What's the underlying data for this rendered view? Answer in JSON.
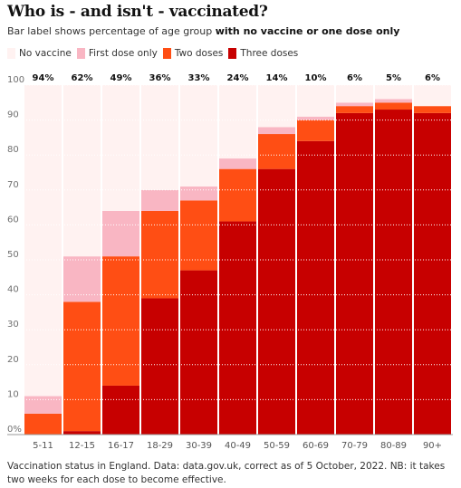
{
  "title": "Who is - and isn't - vaccinated?",
  "subtitle_prefix": "Bar label shows percentage of age group ",
  "subtitle_bold": "with no vaccine or one dose only",
  "footnote": "Vaccination status in England. Data: data.gov.uk, correct as of 5 October, 2022. NB: it takes two weeks for each dose to become effective.",
  "chart_data": {
    "type": "bar",
    "stacked": true,
    "categories": [
      "5-11",
      "12-15",
      "16-17",
      "18-29",
      "30-39",
      "40-49",
      "50-59",
      "60-69",
      "70-79",
      "80-89",
      "90+"
    ],
    "bar_labels": [
      "94%",
      "62%",
      "49%",
      "36%",
      "33%",
      "24%",
      "14%",
      "10%",
      "6%",
      "5%",
      "6%"
    ],
    "series": [
      {
        "name": "Three doses",
        "color": "#c70000",
        "values": [
          0,
          1,
          14,
          39,
          47,
          61,
          76,
          84,
          92,
          93,
          92
        ]
      },
      {
        "name": "Two doses",
        "color": "#ff4e14",
        "values": [
          6,
          37,
          37,
          25,
          20,
          15,
          10,
          6,
          2,
          2,
          2
        ]
      },
      {
        "name": "First dose only",
        "color": "#f9b6c3",
        "values": [
          5,
          13,
          13,
          6,
          4,
          3,
          2,
          1,
          1,
          1,
          0
        ]
      },
      {
        "name": "No vaccine",
        "color": "#fff2f1",
        "values": [
          89,
          49,
          36,
          30,
          29,
          21,
          12,
          9,
          5,
          4,
          6
        ]
      }
    ],
    "legend_order": [
      "No vaccine",
      "First dose only",
      "Two doses",
      "Three doses"
    ],
    "y_ticks": [
      "0%",
      "10",
      "20",
      "30",
      "40",
      "50",
      "60",
      "70",
      "80",
      "90",
      "100"
    ],
    "ylim": [
      0,
      100
    ],
    "grid": true,
    "legend_position": "top-left"
  }
}
